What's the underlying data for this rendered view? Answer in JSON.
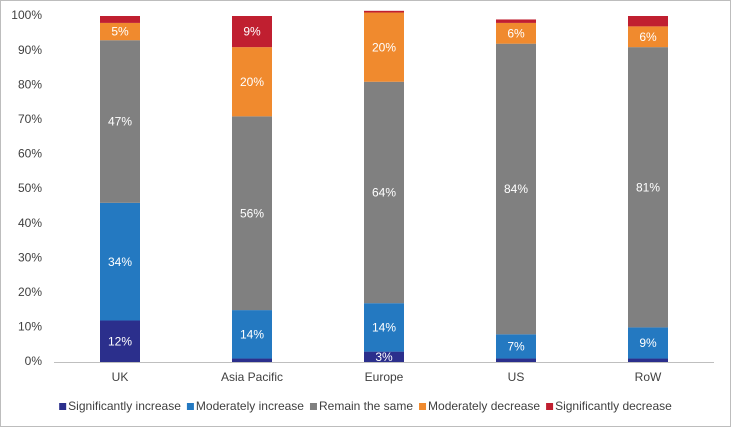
{
  "chart_data": {
    "type": "stacked-bar",
    "categories": [
      "UK",
      "Asia Pacific",
      "Europe",
      "US",
      "RoW"
    ],
    "series": [
      {
        "name": "Significantly increase",
        "color": "#2b2f8c",
        "values": [
          12,
          1,
          3,
          1,
          1
        ],
        "value_labels": [
          "12%",
          null,
          "3%",
          null,
          null
        ]
      },
      {
        "name": "Moderately increase",
        "color": "#2479c1",
        "values": [
          34,
          14,
          14,
          7,
          9
        ],
        "value_labels": [
          "34%",
          "14%",
          "14%",
          "7%",
          "9%"
        ]
      },
      {
        "name": "Remain the same",
        "color": "#808080",
        "values": [
          47,
          56,
          64,
          84,
          81
        ],
        "value_labels": [
          "47%",
          "56%",
          "64%",
          "84%",
          "81%"
        ]
      },
      {
        "name": "Moderately decrease",
        "color": "#f08a2e",
        "values": [
          5,
          20,
          20,
          6,
          6
        ],
        "value_labels": [
          "5%",
          "20%",
          "20%",
          "6%",
          "6%"
        ]
      },
      {
        "name": "Significantly decrease",
        "color": "#c01f30",
        "values": [
          2,
          9,
          0.5,
          1,
          3
        ],
        "value_labels": [
          null,
          "9%",
          null,
          null,
          null
        ]
      }
    ],
    "ylim": [
      0,
      100
    ],
    "yticks": [
      {
        "value": 0,
        "label": "0%"
      },
      {
        "value": 10,
        "label": "10%"
      },
      {
        "value": 20,
        "label": "20%"
      },
      {
        "value": 30,
        "label": "30%"
      },
      {
        "value": 40,
        "label": "40%"
      },
      {
        "value": 50,
        "label": "50%"
      },
      {
        "value": 60,
        "label": "60%"
      },
      {
        "value": 70,
        "label": "70%"
      },
      {
        "value": 80,
        "label": "80%"
      },
      {
        "value": 90,
        "label": "90%"
      },
      {
        "value": 100,
        "label": "100%"
      }
    ],
    "grid": false,
    "legend": "bottom"
  }
}
